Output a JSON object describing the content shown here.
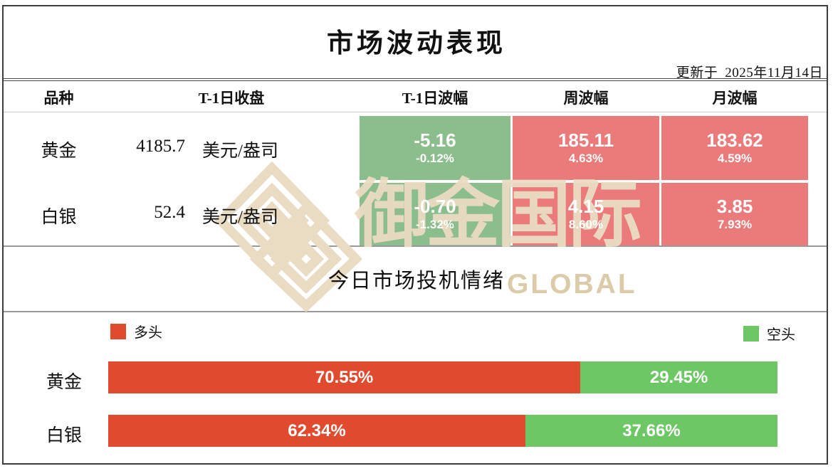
{
  "header": {
    "title": "市场波动表现",
    "updated_label": "更新于",
    "updated_date": "2025年11月14日"
  },
  "table": {
    "columns": [
      "品种",
      "T-1日收盘",
      "T-1日波幅",
      "周波幅",
      "月波幅"
    ],
    "rows": [
      {
        "name": "黄金",
        "close": "4185.7",
        "unit": "美元/盎司",
        "t1": {
          "value": "-5.16",
          "pct": "-0.12%",
          "direction": "down"
        },
        "week": {
          "value": "185.11",
          "pct": "4.63%",
          "direction": "up"
        },
        "month": {
          "value": "183.62",
          "pct": "4.59%",
          "direction": "up"
        }
      },
      {
        "name": "白银",
        "close": "52.4",
        "unit": "美元/盎司",
        "t1": {
          "value": "-0.70",
          "pct": "-1.32%",
          "direction": "down"
        },
        "week": {
          "value": "4.15",
          "pct": "8.60%",
          "direction": "up"
        },
        "month": {
          "value": "3.85",
          "pct": "7.93%",
          "direction": "up"
        }
      }
    ]
  },
  "sentiment": {
    "title": "今日市场投机情绪",
    "legend": {
      "long": "多头",
      "short": "空头"
    },
    "bars": [
      {
        "name": "黄金",
        "long_pct": 70.55,
        "long_label": "70.55%",
        "short_pct": 29.45,
        "short_label": "29.45%"
      },
      {
        "name": "白银",
        "long_pct": 62.34,
        "long_label": "62.34%",
        "short_pct": 37.66,
        "short_label": "37.66%"
      }
    ]
  },
  "watermark": {
    "cn": "御金国际",
    "en": "GLOBAL"
  },
  "colors": {
    "cell_up_red": "#EB7A7A",
    "cell_down_green": "#8CBD8C",
    "bar_long_red": "#E04A2F",
    "bar_short_green": "#6CC764",
    "watermark_tan": "#EADCC3",
    "border_dark": "#3d3d3d",
    "divider_gray": "#9a9a9a"
  },
  "chart_data": [
    {
      "type": "table",
      "title": "市场波动表现",
      "updated": "更新于 2025年11月14日",
      "columns": [
        "品种",
        "T-1日收盘",
        "T-1日波幅",
        "周波幅",
        "月波幅"
      ],
      "rows": [
        [
          "黄金",
          "4185.7 美元/盎司",
          "-5.16 (-0.12%)",
          "185.11 (4.63%)",
          "183.62 (4.59%)"
        ],
        [
          "白银",
          "52.4 美元/盎司",
          "-0.70 (-1.32%)",
          "4.15 (8.60%)",
          "3.85 (7.93%)"
        ]
      ],
      "cell_color_rule": "negative change = green, positive range = red"
    },
    {
      "type": "bar",
      "stacked": true,
      "orientation": "horizontal",
      "title": "今日市场投机情绪",
      "categories": [
        "黄金",
        "白银"
      ],
      "series": [
        {
          "name": "多头",
          "values": [
            70.55,
            62.34
          ],
          "color": "#E04A2F"
        },
        {
          "name": "空头",
          "values": [
            29.45,
            37.66
          ],
          "color": "#6CC764"
        }
      ],
      "unit": "%",
      "xlim": [
        0,
        100
      ],
      "legend_position": "top"
    }
  ]
}
